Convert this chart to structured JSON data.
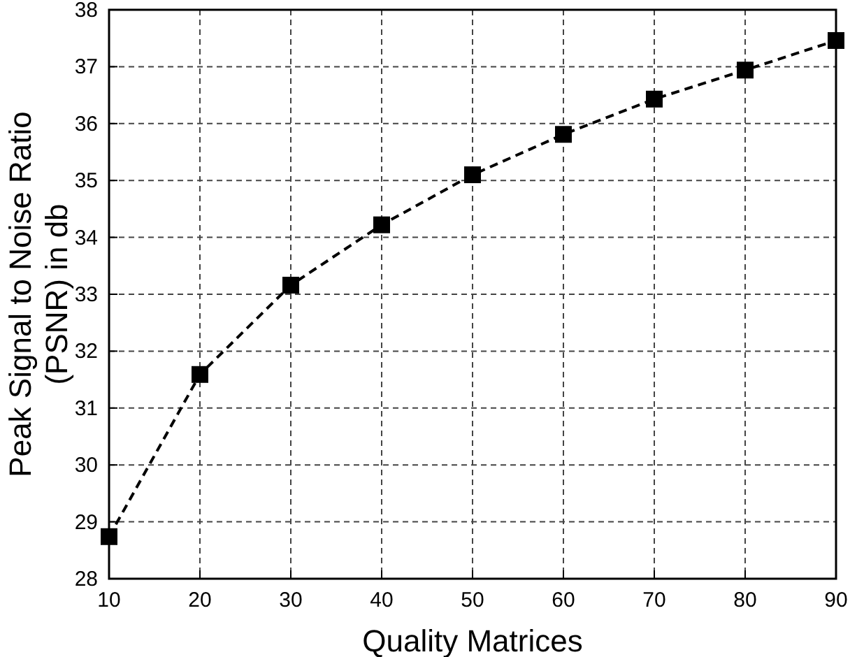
{
  "chart_data": {
    "type": "line",
    "xlabel": "Quality Matrices",
    "ylabel": "Peak Signal to Noise Ratio\n(PSNR) in db",
    "x": [
      10,
      20,
      30,
      40,
      50,
      60,
      70,
      80,
      90
    ],
    "series": [
      {
        "color": "#000000",
        "values": [
          28.74,
          31.59,
          33.16,
          34.22,
          35.1,
          35.81,
          36.43,
          36.94,
          37.46
        ]
      }
    ],
    "xlim": [
      10,
      90
    ],
    "xticks": [
      10,
      20,
      30,
      40,
      50,
      60,
      70,
      80,
      90
    ],
    "ylim": [
      28,
      38
    ],
    "yticks": [
      28,
      29,
      30,
      31,
      32,
      33,
      34,
      35,
      36,
      37,
      38
    ],
    "grid": true,
    "marker": "square",
    "line_style": "dashed"
  }
}
